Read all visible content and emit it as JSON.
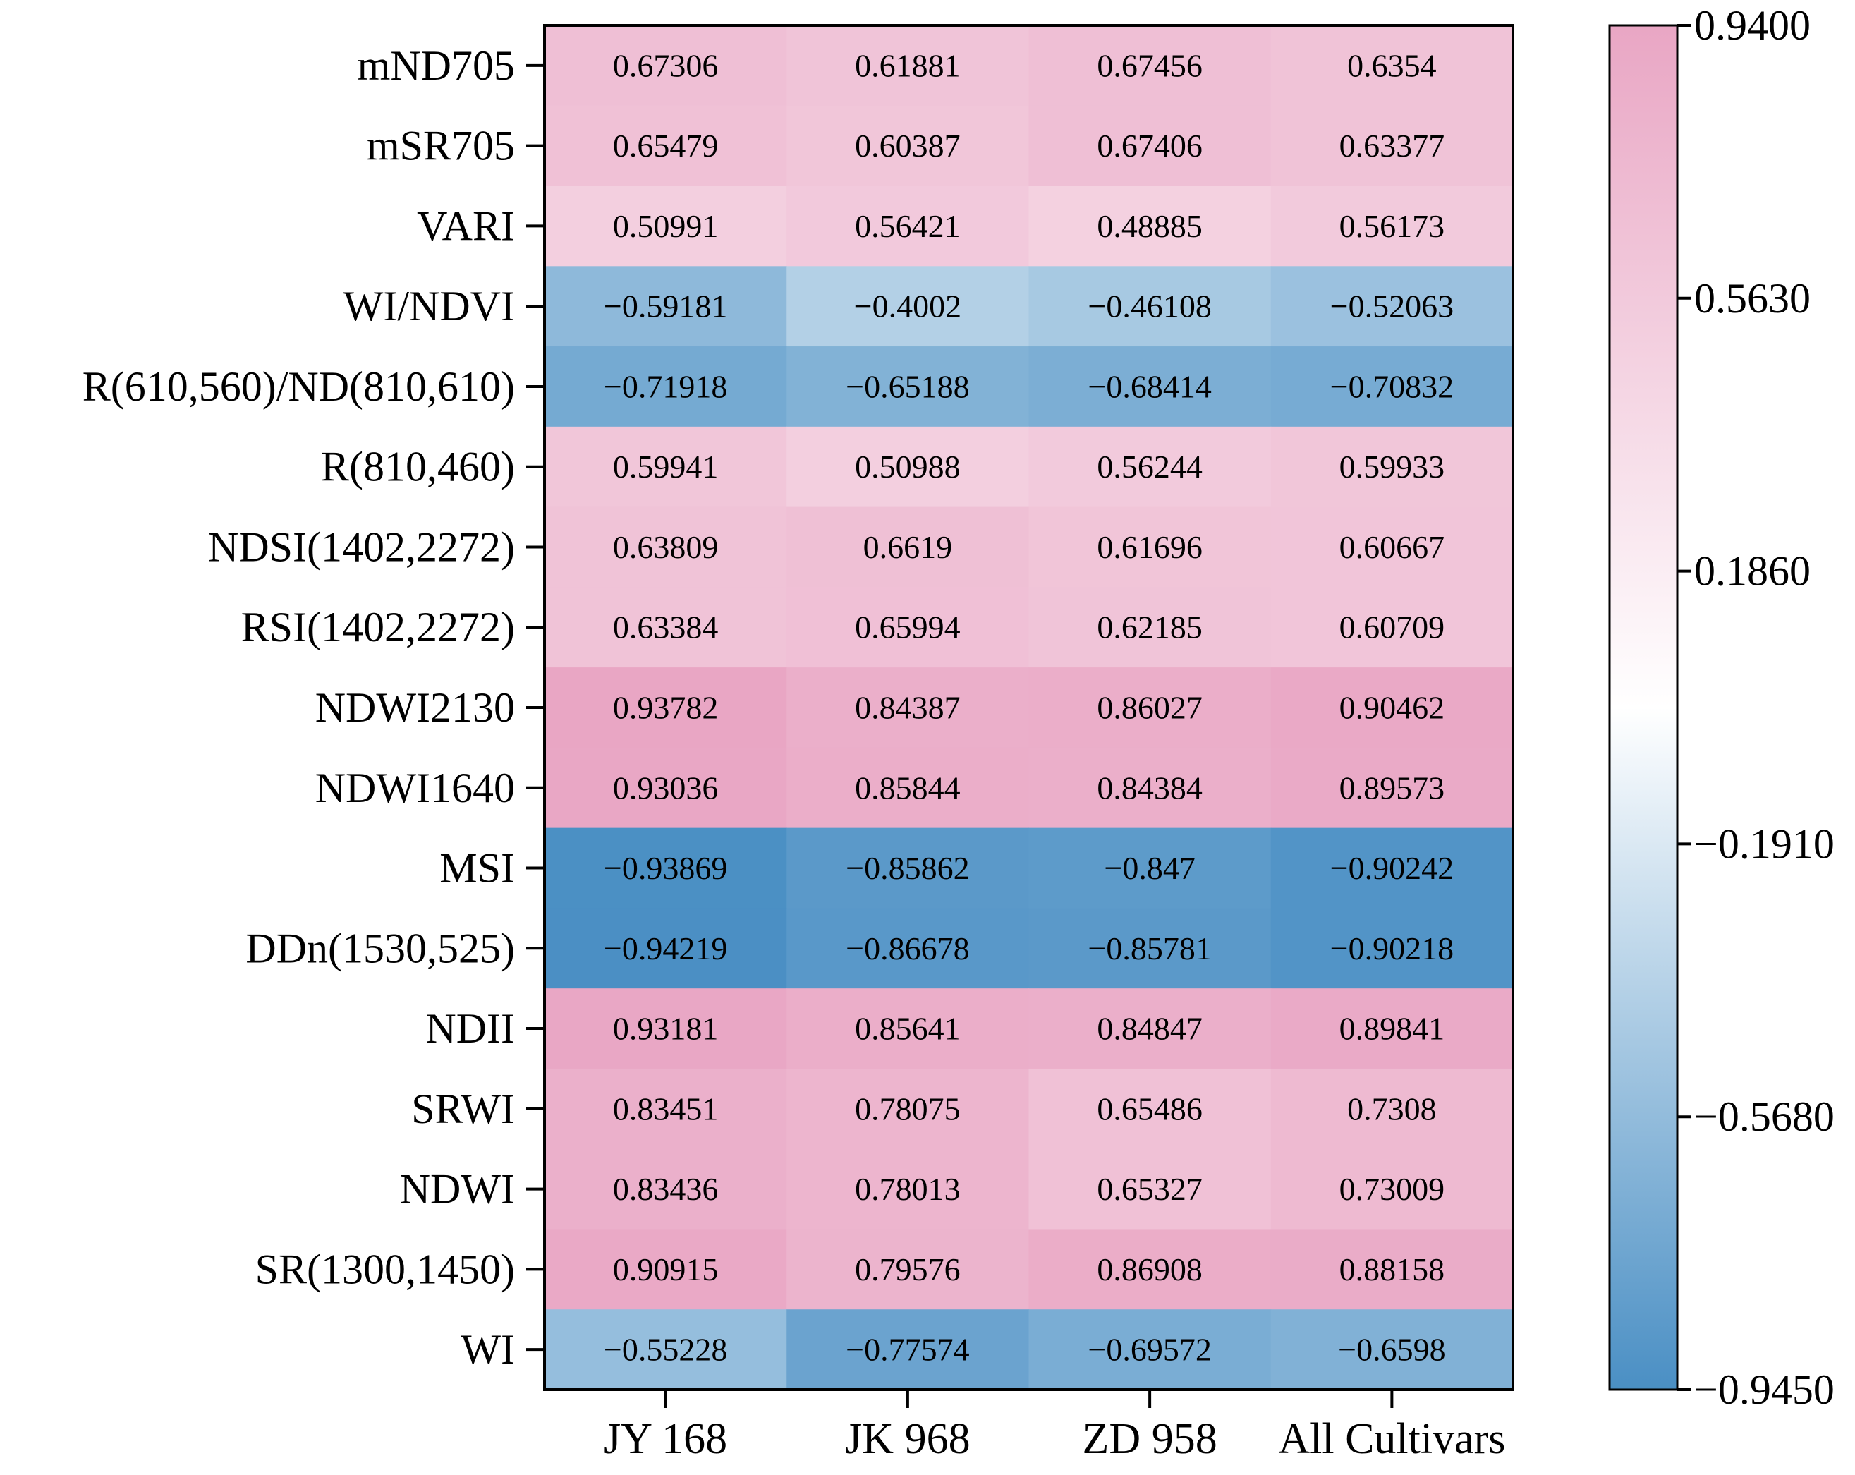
{
  "chart_data": {
    "type": "heatmap",
    "title": "",
    "xlabel": "",
    "ylabel": "",
    "columns": [
      "JY 168",
      "JK 968",
      "ZD 958",
      "All Cultivars"
    ],
    "rows": [
      "mND705",
      "mSR705",
      "VARI",
      "WI/NDVI",
      "R(610,560)/ND(810,610)",
      "R(810,460)",
      "NDSI(1402,2272)",
      "RSI(1402,2272)",
      "NDWI2130",
      "NDWI1640",
      "MSI",
      "DDn(1530,525)",
      "NDII",
      "SRWI",
      "NDWI",
      "SR(1300,1450)",
      "WI"
    ],
    "values": [
      [
        0.67306,
        0.61881,
        0.67456,
        0.6354
      ],
      [
        0.65479,
        0.60387,
        0.67406,
        0.63377
      ],
      [
        0.50991,
        0.56421,
        0.48885,
        0.56173
      ],
      [
        -0.59181,
        -0.4002,
        -0.46108,
        -0.52063
      ],
      [
        -0.71918,
        -0.65188,
        -0.68414,
        -0.70832
      ],
      [
        0.59941,
        0.50988,
        0.56244,
        0.59933
      ],
      [
        0.63809,
        0.6619,
        0.61696,
        0.60667
      ],
      [
        0.63384,
        0.65994,
        0.62185,
        0.60709
      ],
      [
        0.93782,
        0.84387,
        0.86027,
        0.90462
      ],
      [
        0.93036,
        0.85844,
        0.84384,
        0.89573
      ],
      [
        -0.93869,
        -0.85862,
        -0.847,
        -0.90242
      ],
      [
        -0.94219,
        -0.86678,
        -0.85781,
        -0.90218
      ],
      [
        0.93181,
        0.85641,
        0.84847,
        0.89841
      ],
      [
        0.83451,
        0.78075,
        0.65486,
        0.7308
      ],
      [
        0.83436,
        0.78013,
        0.65327,
        0.73009
      ],
      [
        0.90915,
        0.79576,
        0.86908,
        0.88158
      ],
      [
        -0.55228,
        -0.77574,
        -0.69572,
        -0.6598
      ]
    ],
    "value_labels": [
      [
        "0.67306",
        "0.61881",
        "0.67456",
        "0.6354"
      ],
      [
        "0.65479",
        "0.60387",
        "0.67406",
        "0.63377"
      ],
      [
        "0.50991",
        "0.56421",
        "0.48885",
        "0.56173"
      ],
      [
        "−0.59181",
        "−0.4002",
        "−0.46108",
        "−0.52063"
      ],
      [
        "−0.71918",
        "−0.65188",
        "−0.68414",
        "−0.70832"
      ],
      [
        "0.59941",
        "0.50988",
        "0.56244",
        "0.59933"
      ],
      [
        "0.63809",
        "0.6619",
        "0.61696",
        "0.60667"
      ],
      [
        "0.63384",
        "0.65994",
        "0.62185",
        "0.60709"
      ],
      [
        "0.93782",
        "0.84387",
        "0.86027",
        "0.90462"
      ],
      [
        "0.93036",
        "0.85844",
        "0.84384",
        "0.89573"
      ],
      [
        "−0.93869",
        "−0.85862",
        "−0.847",
        "−0.90242"
      ],
      [
        "−0.94219",
        "−0.86678",
        "−0.85781",
        "−0.90218"
      ],
      [
        "0.93181",
        "0.85641",
        "0.84847",
        "0.89841"
      ],
      [
        "0.83451",
        "0.78075",
        "0.65486",
        "0.7308"
      ],
      [
        "0.83436",
        "0.78013",
        "0.65327",
        "0.73009"
      ],
      [
        "0.90915",
        "0.79576",
        "0.86908",
        "0.88158"
      ],
      [
        "−0.55228",
        "−0.77574",
        "−0.69572",
        "−0.6598"
      ]
    ],
    "colorbar": {
      "min": -0.945,
      "max": 0.94,
      "ticks": [
        0.94,
        0.563,
        0.186,
        -0.191,
        -0.568,
        -0.945
      ],
      "tick_labels": [
        "0.9400",
        "0.5630",
        "0.1860",
        "−0.1910",
        "−0.5680",
        "−0.9450"
      ],
      "color_low": "#4a8fc4",
      "color_mid": "#ffffff",
      "color_high": "#e9a6c4"
    },
    "grid": false,
    "legend": "colorbar right"
  }
}
